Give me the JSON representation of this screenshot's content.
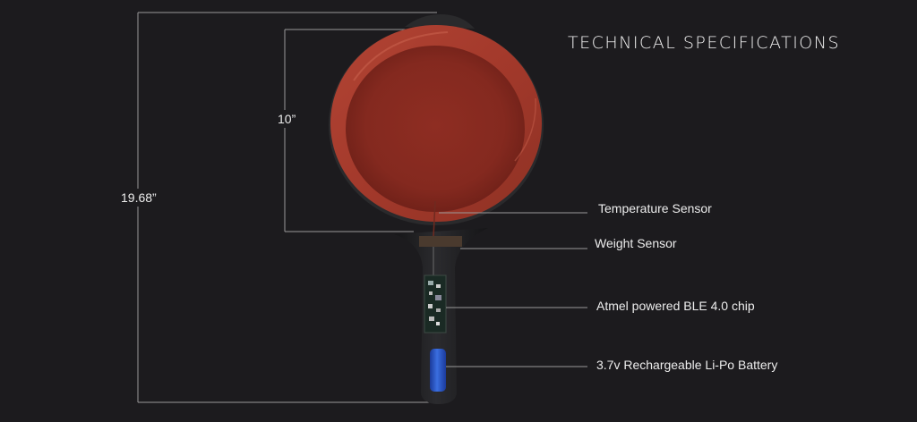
{
  "title": "TECHNICAL SPECIFICATIONS",
  "dimensions": {
    "total_length": "19.68”",
    "pan_diameter": "10”"
  },
  "callouts": [
    {
      "id": "temperature",
      "label": "Temperature Sensor"
    },
    {
      "id": "weight",
      "label": "Weight Sensor"
    },
    {
      "id": "chip",
      "label": "Atmel powered BLE 4.0 chip"
    },
    {
      "id": "battery",
      "label": "3.7v Rechargeable Li-Po Battery"
    }
  ],
  "colors": {
    "background": "#1c1b1e",
    "pan_interior": "#8c2e22",
    "pan_body": "#2a2a2c",
    "battery": "#2a55c8",
    "line": "#9a9a9a"
  }
}
